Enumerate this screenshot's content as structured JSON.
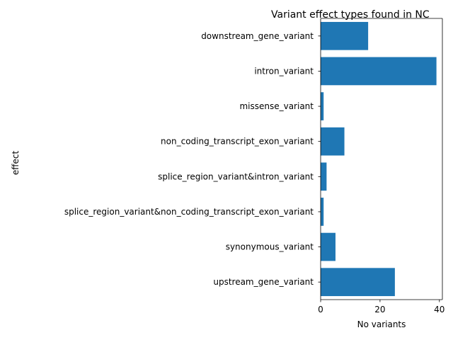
{
  "chart_data": {
    "type": "bar",
    "orientation": "horizontal",
    "title": "Variant effect types found in NC",
    "xlabel": "No variants",
    "ylabel": "effect",
    "categories": [
      "downstream_gene_variant",
      "intron_variant",
      "missense_variant",
      "non_coding_transcript_exon_variant",
      "splice_region_variant&intron_variant",
      "splice_region_variant&non_coding_transcript_exon_variant",
      "synonymous_variant",
      "upstream_gene_variant"
    ],
    "values": [
      16,
      39,
      1,
      8,
      2,
      1,
      5,
      25
    ],
    "xlim": [
      0,
      41
    ],
    "xticks": [
      0,
      20,
      40
    ],
    "bar_color": "#1f77b4",
    "grid": false,
    "legend": "none"
  }
}
